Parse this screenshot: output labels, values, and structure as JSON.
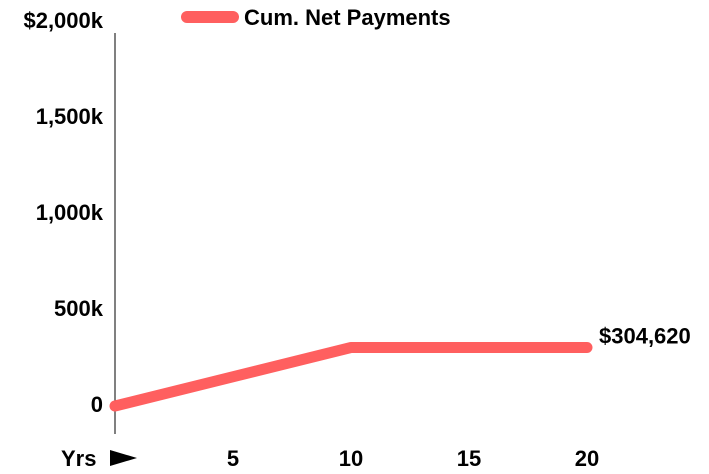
{
  "chart_data": {
    "type": "line",
    "title": "",
    "xlabel": "Yrs",
    "ylabel": "",
    "x_ticks": [
      "5",
      "10",
      "15",
      "20"
    ],
    "x_tick_values": [
      5,
      10,
      15,
      20
    ],
    "y_ticks": [
      "0",
      "500k",
      "1,000k",
      "1,500k",
      "$2,000k"
    ],
    "y_tick_values": [
      0,
      500000,
      1000000,
      1500000,
      2000000
    ],
    "xlim": [
      0,
      20
    ],
    "ylim": [
      0,
      2000000
    ],
    "grid": false,
    "legend_position": "top",
    "series": [
      {
        "name": "Cum. Net Payments",
        "color": "#ff5f5f",
        "x": [
          0,
          10,
          20
        ],
        "y": [
          0,
          304620,
          304620
        ]
      }
    ],
    "annotations": [
      {
        "text": "$304,620",
        "x": 20,
        "y": 304620
      }
    ]
  }
}
